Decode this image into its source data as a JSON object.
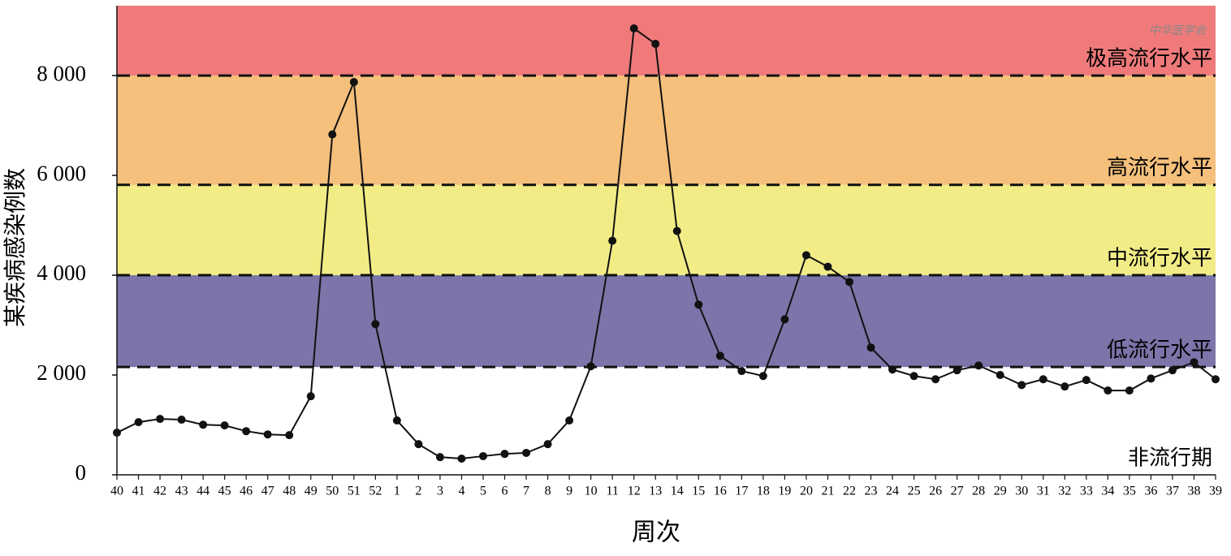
{
  "chart_data": {
    "type": "line",
    "y_label": "某疾病感染例数",
    "x_label": "周次",
    "watermark": "中华医学会",
    "categories": [
      "40",
      "41",
      "42",
      "43",
      "44",
      "45",
      "46",
      "47",
      "48",
      "49",
      "50",
      "51",
      "52",
      "1",
      "2",
      "3",
      "4",
      "5",
      "6",
      "7",
      "8",
      "9",
      "10",
      "11",
      "12",
      "13",
      "14",
      "15",
      "16",
      "17",
      "18",
      "19",
      "20",
      "21",
      "22",
      "23",
      "24",
      "25",
      "26",
      "27",
      "28",
      "29",
      "30",
      "31",
      "32",
      "33",
      "34",
      "35",
      "36",
      "37",
      "38",
      "39"
    ],
    "series": [
      {
        "color": "#111111",
        "values": [
          845,
          1055,
          1120,
          1105,
          1005,
          990,
          875,
          810,
          795,
          1575,
          6820,
          7870,
          3020,
          1090,
          615,
          355,
          325,
          375,
          420,
          440,
          615,
          1090,
          2175,
          4690,
          8945,
          8635,
          4885,
          3410,
          2385,
          2080,
          1980,
          3115,
          4400,
          4170,
          3865,
          2550,
          2110,
          1980,
          1915,
          2095,
          2190,
          2000,
          1800,
          1915,
          1770,
          1900,
          1690,
          1690,
          1930,
          2095,
          2255,
          1915
        ]
      }
    ],
    "ylim": [
      0,
      9400
    ],
    "yticks": [
      0,
      {
        "value": 2000,
        "label": "2 000"
      },
      {
        "value": 4000,
        "label": "4 000"
      },
      {
        "value": 6000,
        "label": "6 000"
      },
      {
        "value": 8000,
        "label": "8 000"
      }
    ],
    "bands": [
      {
        "label": "非流行期",
        "from": 0,
        "color": "#ffffff"
      },
      {
        "label": "低流行水平",
        "from": 2160,
        "color": "#7b75aa"
      },
      {
        "label": "中流行水平",
        "from": 4000,
        "color": "#f2ec86"
      },
      {
        "label": "高流行水平",
        "from": 5810,
        "color": "#f5c07c"
      },
      {
        "label": "极高流行水平",
        "from": 8000,
        "color": "#f07a7a"
      }
    ]
  }
}
